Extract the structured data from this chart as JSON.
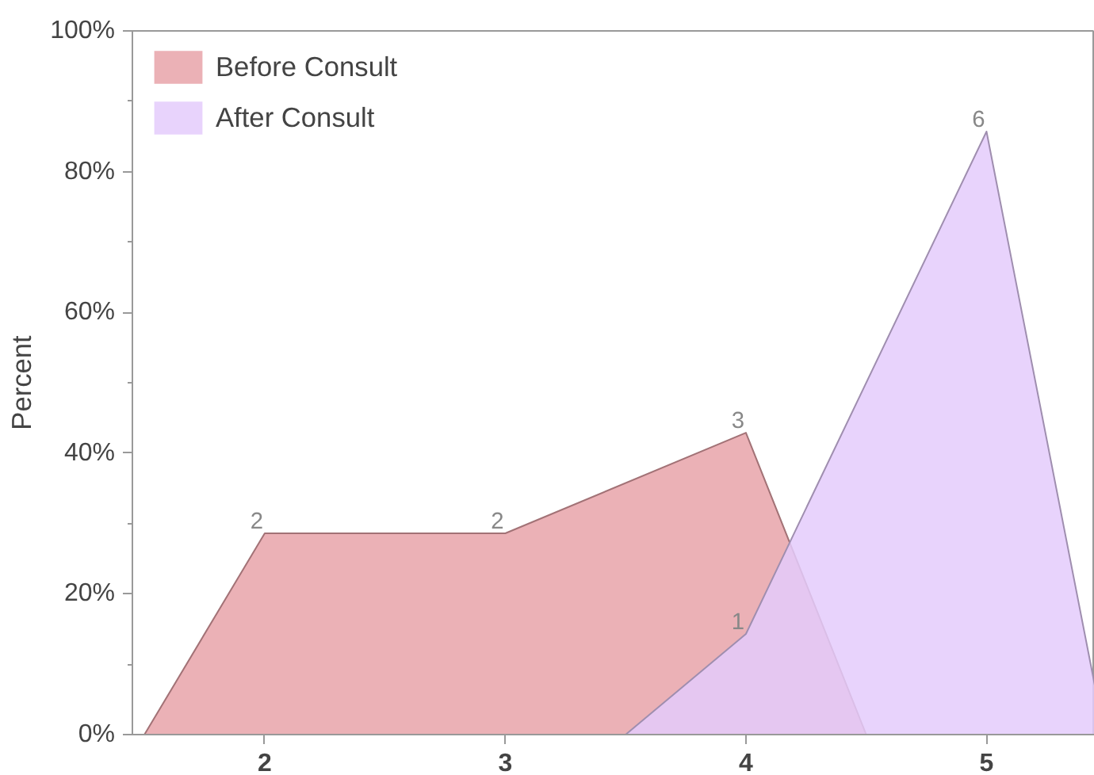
{
  "chart_data": {
    "type": "area",
    "ylabel": "Percent",
    "xlim": [
      1.45,
      5.45
    ],
    "xticks": [
      2,
      3,
      4,
      5
    ],
    "ylim": [
      0,
      100
    ],
    "yticks": [
      {
        "value": 0,
        "label": "0%"
      },
      {
        "value": 20,
        "label": "20%"
      },
      {
        "value": 40,
        "label": "40%"
      },
      {
        "value": 60,
        "label": "60%"
      },
      {
        "value": 80,
        "label": "80%"
      },
      {
        "value": 100,
        "label": "100%"
      }
    ],
    "grid": false,
    "legend": "top left",
    "series": [
      {
        "name": "Before Consult",
        "color": "#e8a3a9",
        "x": [
          1.5,
          2,
          3,
          4,
          4.5
        ],
        "values": [
          0,
          28.6,
          28.6,
          42.9,
          0
        ]
      },
      {
        "name": "After Consult",
        "color": "#e4cbfb",
        "x": [
          3.5,
          4,
          5,
          5.45
        ],
        "values": [
          0,
          14.3,
          85.7,
          7
        ]
      }
    ],
    "annotations": [
      {
        "text": "2",
        "x": 2,
        "y": 28.6
      },
      {
        "text": "2",
        "x": 3,
        "y": 28.6
      },
      {
        "text": "3",
        "x": 4,
        "y": 42.9
      },
      {
        "text": "1",
        "x": 4,
        "y": 14.3
      },
      {
        "text": "6",
        "x": 5,
        "y": 85.7
      }
    ]
  }
}
